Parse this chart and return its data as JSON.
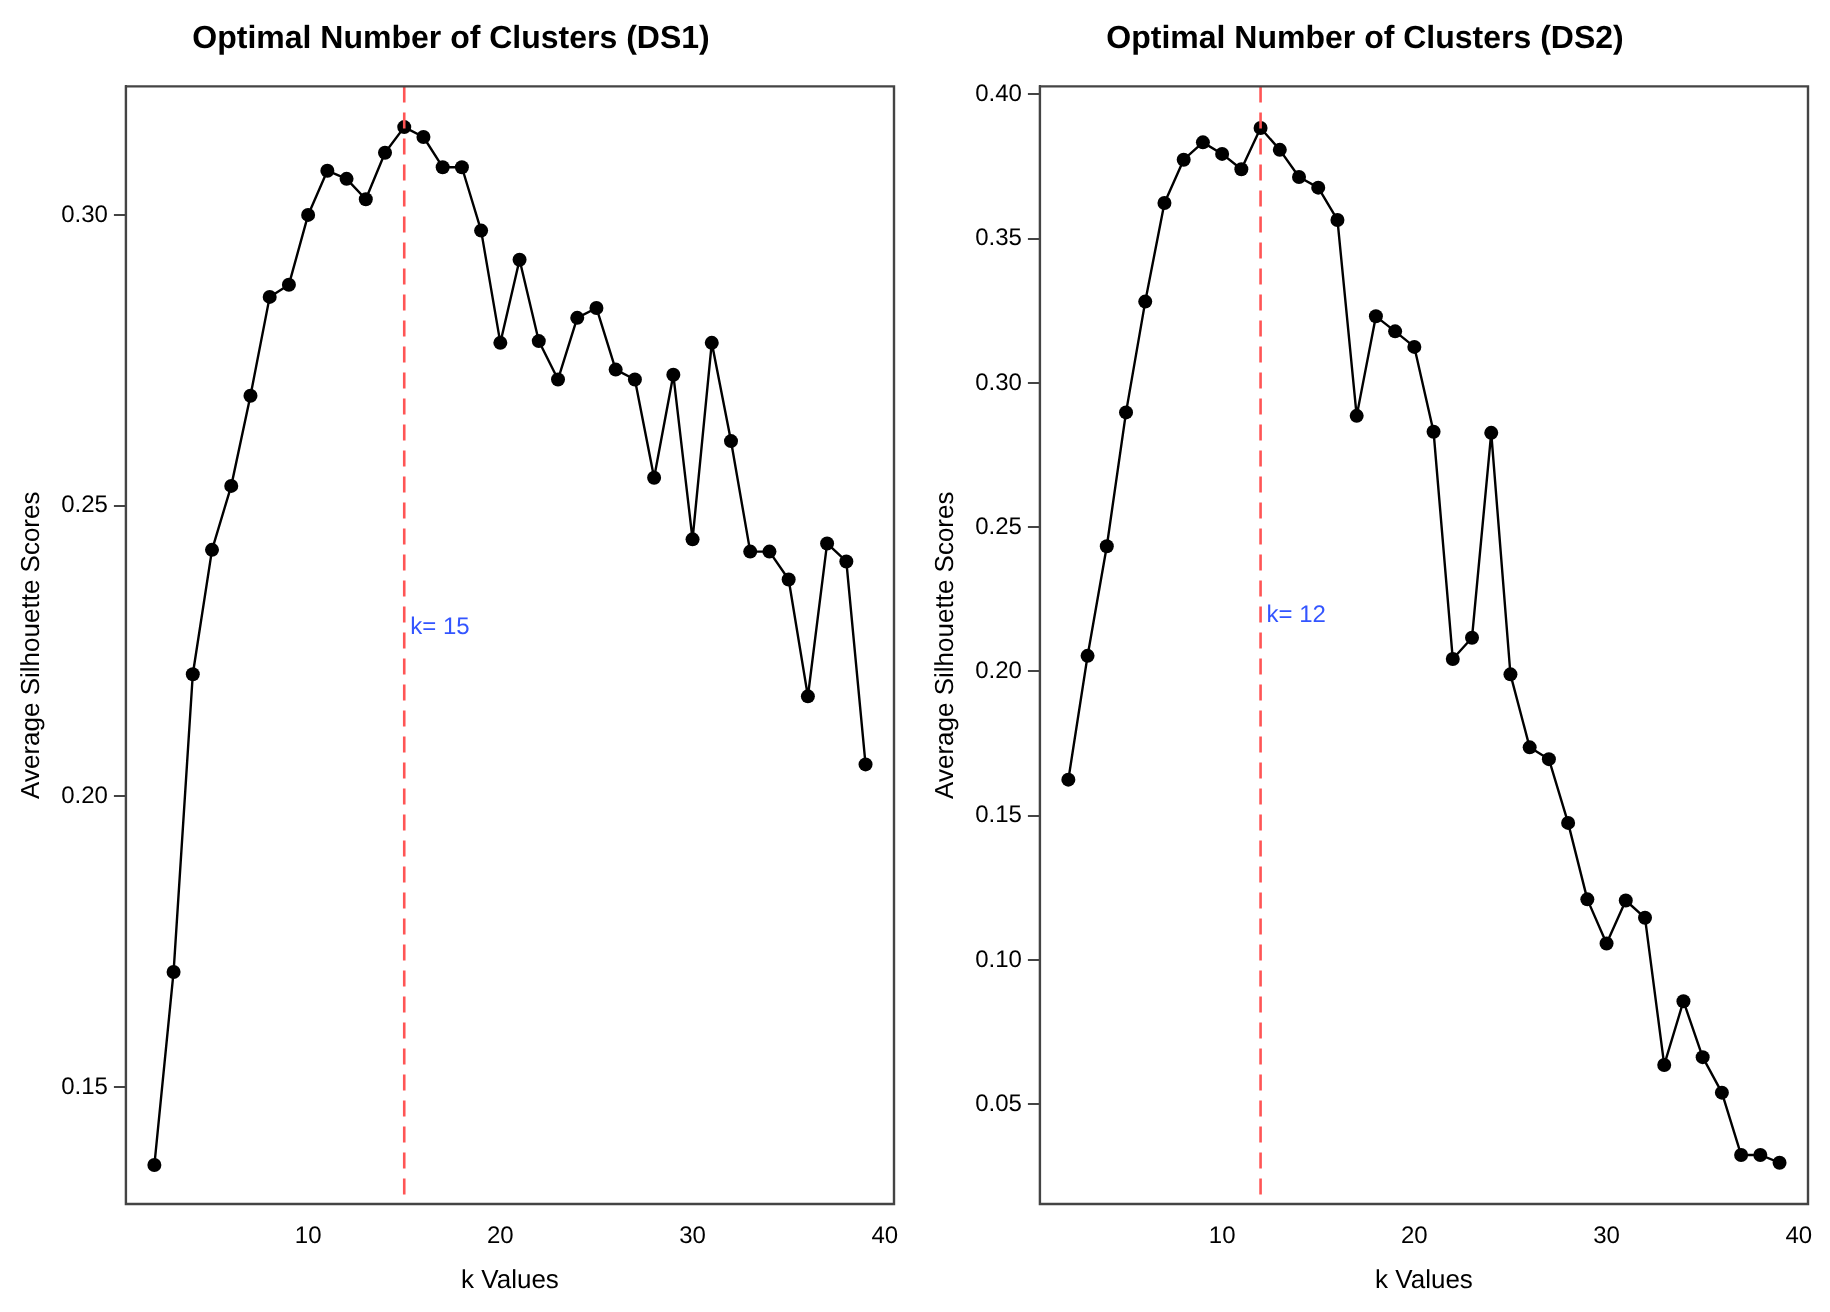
{
  "chart_data": [
    {
      "type": "line",
      "title": "Optimal Number of Clusters (DS1)",
      "xlabel": "k Values",
      "ylabel": "Average Silhouette Scores",
      "x": [
        2,
        3,
        4,
        5,
        6,
        7,
        8,
        9,
        10,
        11,
        12,
        13,
        14,
        15,
        16,
        17,
        18,
        19,
        20,
        21,
        22,
        23,
        24,
        25,
        26,
        27,
        28,
        29,
        30,
        31,
        32,
        33,
        34,
        35,
        36,
        37,
        38,
        39
      ],
      "series": [
        {
          "color": "#000000",
          "values": [
            0.1366,
            0.1698,
            0.221,
            0.2424,
            0.2534,
            0.2689,
            0.2859,
            0.288,
            0.3,
            0.3076,
            0.3062,
            0.3027,
            0.3107,
            0.3151,
            0.3134,
            0.3082,
            0.3082,
            0.2973,
            0.278,
            0.2923,
            0.2783,
            0.2717,
            0.2823,
            0.284,
            0.2734,
            0.2717,
            0.2548,
            0.2725,
            0.2442,
            0.278,
            0.2611,
            0.2421,
            0.2421,
            0.2373,
            0.2172,
            0.2435,
            0.2404,
            0.2055
          ]
        }
      ],
      "xlim": [
        0.52,
        40.48
      ],
      "xticks": [
        10,
        20,
        30,
        40
      ],
      "ylim": [
        0.1299,
        0.3221
      ],
      "yticks": [
        0.15,
        {
          "value": 0.2,
          "label": "0.20"
        },
        0.25,
        {
          "value": 0.3,
          "label": "0.30"
        }
      ],
      "ref_lines": [
        {
          "axis": "x",
          "value": 15,
          "color": "#ff5555",
          "line_style": "dashed"
        }
      ],
      "annotations": [
        {
          "text": "k= 15",
          "x": 15,
          "y": 0.229
        }
      ],
      "marker": "circle",
      "line_style": "solid",
      "grid": false,
      "legend": false
    },
    {
      "type": "line",
      "title": "Optimal Number of Clusters (DS2)",
      "xlabel": "k Values",
      "ylabel": "Average Silhouette Scores",
      "x": [
        2,
        3,
        4,
        5,
        6,
        7,
        8,
        9,
        10,
        11,
        12,
        13,
        14,
        15,
        16,
        17,
        18,
        19,
        20,
        21,
        22,
        23,
        24,
        25,
        26,
        27,
        28,
        29,
        30,
        31,
        32,
        33,
        34,
        35,
        36,
        37,
        38,
        39
      ],
      "series": [
        {
          "color": "#000000",
          "values": [
            0.1625,
            0.2054,
            0.2434,
            0.2898,
            0.3282,
            0.3624,
            0.3774,
            0.3834,
            0.3794,
            0.3741,
            0.3884,
            0.3808,
            0.3714,
            0.3677,
            0.3565,
            0.2886,
            0.3231,
            0.3179,
            0.3125,
            0.2831,
            0.2043,
            0.2117,
            0.2827,
            0.199,
            0.1737,
            0.1696,
            0.1475,
            0.121,
            0.1057,
            0.1206,
            0.1146,
            0.0636,
            0.0857,
            0.0663,
            0.054,
            0.0324,
            0.0324,
            0.0297
          ]
        }
      ],
      "xlim": [
        0.52,
        40.48
      ],
      "xticks": [
        10,
        20,
        30,
        40
      ],
      "ylim": [
        0.0154,
        0.4028
      ],
      "yticks": [
        0.05,
        {
          "value": 0.1,
          "label": "0.10"
        },
        0.15,
        {
          "value": 0.2,
          "label": "0.20"
        },
        0.25,
        {
          "value": 0.3,
          "label": "0.30"
        },
        0.35,
        {
          "value": 0.4,
          "label": "0.40"
        }
      ],
      "ref_lines": [
        {
          "axis": "x",
          "value": 12,
          "color": "#ff5555",
          "line_style": "dashed"
        }
      ],
      "annotations": [
        {
          "text": "k= 12",
          "x": 12,
          "y": 0.2195
        }
      ],
      "marker": "circle",
      "line_style": "solid",
      "grid": false,
      "legend": false
    }
  ]
}
